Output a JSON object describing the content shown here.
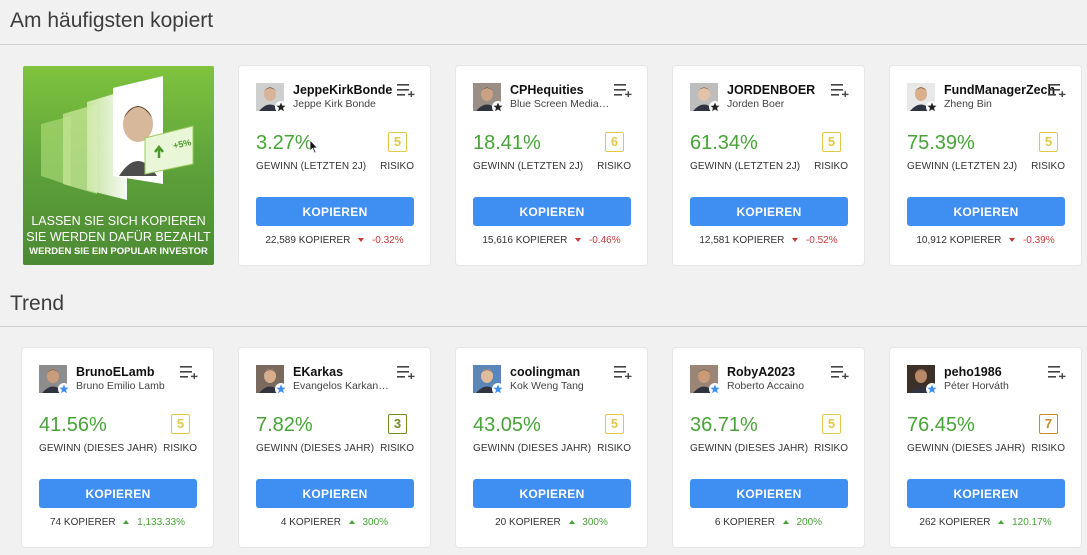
{
  "sections": [
    {
      "title": "Am häufigsten kopiert"
    },
    {
      "title": "Trend"
    }
  ],
  "banner": {
    "line1": "LASSEN SIE SICH KOPIEREN",
    "line2": "SIE WERDEN DAFÜR BEZAHLT",
    "line3": "WERDEN SIE EIN POPULAR INVESTOR",
    "badge": "+5%"
  },
  "copy_label": "KOPIEREN",
  "risk_label": "RISIKO",
  "watch_icon": "add-to-watchlist-icon",
  "colors": {
    "gain": "#47a337",
    "button": "#3f8ef2",
    "risk_yellow": "#e2c84a",
    "risk_olive": "#6f8f1f",
    "risk_orange": "#c9892f",
    "trend_down": "#c73a3a",
    "trend_up": "#47a337"
  },
  "most_copied": [
    {
      "username": "JeppeKirkBonde",
      "name": "Jeppe Kirk Bonde",
      "gain": "3.27%",
      "gain_label": "GEWINN (LETZTEN 2J)",
      "risk": "5",
      "copiers": "22,589 KOPIERER",
      "change": "-0.32%",
      "direction": "down",
      "badge": "dark"
    },
    {
      "username": "CPHequities",
      "name": "Blue Screen Media ApS",
      "gain": "18.41%",
      "gain_label": "GEWINN (LETZTEN 2J)",
      "risk": "6",
      "copiers": "15,616 KOPIERER",
      "change": "-0.46%",
      "direction": "down",
      "badge": "dark"
    },
    {
      "username": "JORDENBOER",
      "name": "Jorden Boer",
      "gain": "61.34%",
      "gain_label": "GEWINN (LETZTEN 2J)",
      "risk": "5",
      "copiers": "12,581 KOPIERER",
      "change": "-0.52%",
      "direction": "down",
      "badge": "dark"
    },
    {
      "username": "FundManagerZech",
      "name": "Zheng Bin",
      "gain": "75.39%",
      "gain_label": "GEWINN (LETZTEN 2J)",
      "risk": "5",
      "copiers": "10,912 KOPIERER",
      "change": "-0.39%",
      "direction": "down",
      "badge": "dark"
    }
  ],
  "trend": [
    {
      "username": "BrunoELamb",
      "name": "Bruno Emilio Lamb",
      "gain": "41.56%",
      "gain_label": "GEWINN (DIESES JAHR)",
      "risk": "5",
      "copiers": "74 KOPIERER",
      "change": "1,133.33%",
      "direction": "up",
      "badge": "blue"
    },
    {
      "username": "EKarkas",
      "name": "Evangelos Karkanetsos",
      "gain": "7.82%",
      "gain_label": "GEWINN (DIESES JAHR)",
      "risk": "3",
      "copiers": "4 KOPIERER",
      "change": "300%",
      "direction": "up",
      "badge": "blue"
    },
    {
      "username": "coolingman",
      "name": "Kok Weng Tang",
      "gain": "43.05%",
      "gain_label": "GEWINN (DIESES JAHR)",
      "risk": "5",
      "copiers": "20 KOPIERER",
      "change": "300%",
      "direction": "up",
      "badge": "blue"
    },
    {
      "username": "RobyA2023",
      "name": "Roberto Accaino",
      "gain": "36.71%",
      "gain_label": "GEWINN (DIESES JAHR)",
      "risk": "5",
      "copiers": "6 KOPIERER",
      "change": "200%",
      "direction": "up",
      "badge": "blue"
    },
    {
      "username": "peho1986",
      "name": "Péter Horváth",
      "gain": "76.45%",
      "gain_label": "GEWINN (DIESES JAHR)",
      "risk": "7",
      "copiers": "262 KOPIERER",
      "change": "120.17%",
      "direction": "up",
      "badge": "blue"
    }
  ]
}
